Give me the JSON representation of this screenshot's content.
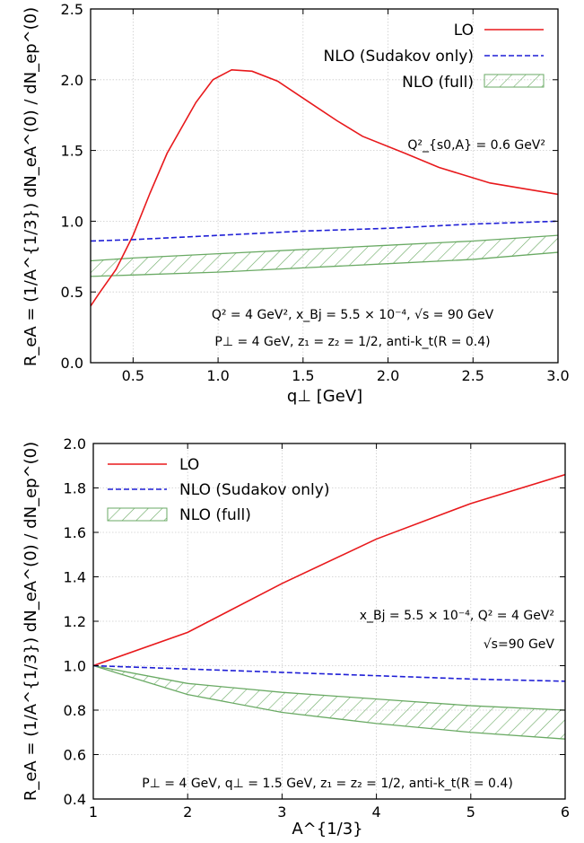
{
  "chart_data": [
    {
      "type": "line",
      "xlabel": "q⊥ [GeV]",
      "ylabel": "R_eA = (1/A^{1/3}) dN_eA^(0) / dN_ep^(0)",
      "xlim": [
        0.25,
        3.0
      ],
      "ylim": [
        0.0,
        2.5
      ],
      "xticks": [
        "0.5",
        "1.0",
        "1.5",
        "2.0",
        "2.5",
        "3.0"
      ],
      "xtick_values": [
        0.5,
        1.0,
        1.5,
        2.0,
        2.5,
        3.0
      ],
      "yticks": [
        "0.0",
        "0.5",
        "1.0",
        "1.5",
        "2.0",
        "2.5"
      ],
      "ytick_values": [
        0.0,
        0.5,
        1.0,
        1.5,
        2.0,
        2.5
      ],
      "grid": true,
      "legend_position": "top-right",
      "annotations": [
        "Q²_{s0,A} = 0.6 GeV²",
        "Q² = 4 GeV², x_Bj = 5.5 × 10⁻⁴, √s = 90 GeV",
        "P⊥ = 4 GeV, z₁ = z₂ = 1/2, anti-k_t(R = 0.4)"
      ],
      "series": [
        {
          "name": "LO",
          "style": "solid",
          "color": "#e8191c",
          "x": [
            0.25,
            0.3,
            0.4,
            0.5,
            0.6,
            0.7,
            0.78,
            0.87,
            0.97,
            1.08,
            1.2,
            1.35,
            1.5,
            1.7,
            1.85,
            2.1,
            2.3,
            2.6,
            2.8,
            3.0
          ],
          "y": [
            0.4,
            0.49,
            0.66,
            0.9,
            1.2,
            1.48,
            1.65,
            1.84,
            2.0,
            2.07,
            2.06,
            1.99,
            1.87,
            1.71,
            1.6,
            1.48,
            1.38,
            1.27,
            1.23,
            1.19
          ]
        },
        {
          "name": "NLO (Sudakov only)",
          "style": "dashed",
          "color": "#1f1fd6",
          "x": [
            0.25,
            0.5,
            1.0,
            1.5,
            2.0,
            2.5,
            3.0
          ],
          "y": [
            0.86,
            0.87,
            0.9,
            0.93,
            0.95,
            0.98,
            1.0
          ]
        },
        {
          "name": "NLO (full)",
          "style": "hatched-band",
          "color": "#6aaa64",
          "x": [
            0.25,
            0.5,
            1.0,
            1.5,
            2.0,
            2.5,
            3.0
          ],
          "y_upper": [
            0.72,
            0.74,
            0.77,
            0.8,
            0.83,
            0.86,
            0.9
          ],
          "y_lower": [
            0.61,
            0.62,
            0.64,
            0.67,
            0.7,
            0.73,
            0.78
          ]
        }
      ]
    },
    {
      "type": "line",
      "xlabel": "A^{1/3}",
      "ylabel": "R_eA = (1/A^{1/3}) dN_eA^(0) / dN_ep^(0)",
      "xlim": [
        1,
        6
      ],
      "ylim": [
        0.4,
        2.0
      ],
      "xticks": [
        "1",
        "2",
        "3",
        "4",
        "5",
        "6"
      ],
      "xtick_values": [
        1,
        2,
        3,
        4,
        5,
        6
      ],
      "yticks": [
        "0.4",
        "0.6",
        "0.8",
        "1.0",
        "1.2",
        "1.4",
        "1.6",
        "1.8",
        "2.0"
      ],
      "ytick_values": [
        0.4,
        0.6,
        0.8,
        1.0,
        1.2,
        1.4,
        1.6,
        1.8,
        2.0
      ],
      "grid": true,
      "legend_position": "top-left",
      "annotations": [
        "x_Bj = 5.5 × 10⁻⁴, Q² = 4 GeV²",
        "√s=90 GeV",
        "P⊥ = 4 GeV, q⊥ = 1.5 GeV, z₁ = z₂ = 1/2, anti-k_t(R = 0.4)"
      ],
      "series": [
        {
          "name": "LO",
          "style": "solid",
          "color": "#e8191c",
          "x": [
            1,
            2,
            3,
            4,
            5,
            6
          ],
          "y": [
            1.0,
            1.15,
            1.37,
            1.57,
            1.73,
            1.86
          ]
        },
        {
          "name": "NLO (Sudakov only)",
          "style": "dashed",
          "color": "#1f1fd6",
          "x": [
            1,
            2,
            3,
            4,
            5,
            6
          ],
          "y": [
            1.0,
            0.985,
            0.97,
            0.955,
            0.94,
            0.93
          ]
        },
        {
          "name": "NLO (full)",
          "style": "hatched-band",
          "color": "#6aaa64",
          "x": [
            1,
            2,
            3,
            4,
            5,
            6
          ],
          "y_upper": [
            1.0,
            0.92,
            0.88,
            0.85,
            0.82,
            0.8
          ],
          "y_lower": [
            1.0,
            0.87,
            0.79,
            0.74,
            0.7,
            0.67
          ]
        }
      ]
    }
  ]
}
